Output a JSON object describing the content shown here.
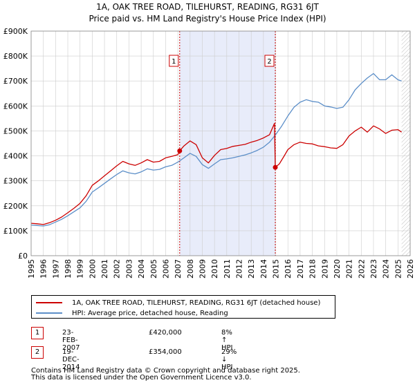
{
  "chart_data": {
    "type": "line",
    "title_line1": "1A, OAK TREE ROAD, TILEHURST, READING, RG31 6JT",
    "title_line2": "Price paid vs. HM Land Registry's House Price Index (HPI)",
    "xlabel": "",
    "ylabel": "",
    "xlim": [
      1995,
      2026
    ],
    "ylim": [
      0,
      900000
    ],
    "y_ticks": [
      0,
      100000,
      200000,
      300000,
      400000,
      500000,
      600000,
      700000,
      800000,
      900000
    ],
    "y_tick_labels": [
      "£0",
      "£100K",
      "£200K",
      "£300K",
      "£400K",
      "£500K",
      "£600K",
      "£700K",
      "£800K",
      "£900K"
    ],
    "x_ticks": [
      1995,
      1996,
      1997,
      1998,
      1999,
      2000,
      2001,
      2002,
      2003,
      2004,
      2005,
      2006,
      2007,
      2008,
      2009,
      2010,
      2011,
      2012,
      2013,
      2014,
      2015,
      2016,
      2017,
      2018,
      2019,
      2020,
      2021,
      2022,
      2023,
      2024,
      2025,
      2026
    ],
    "x_tick_labels": [
      "1995",
      "1996",
      "1997",
      "1998",
      "1999",
      "2000",
      "2001",
      "2002",
      "2003",
      "2004",
      "2005",
      "2006",
      "2007",
      "2008",
      "2009",
      "2010",
      "2011",
      "2012",
      "2013",
      "2014",
      "2015",
      "2016",
      "2017",
      "2018",
      "2019",
      "2020",
      "2021",
      "2022",
      "2023",
      "2024",
      "2025",
      "2026"
    ],
    "grid": true,
    "shaded_span": [
      2007.15,
      2014.97
    ],
    "hatched_from": 2025.3,
    "series": [
      {
        "name": "1A, OAK TREE ROAD, TILEHURST, READING, RG31 6JT (detached house)",
        "color": "#cc0000",
        "x": [
          1995.0,
          1995.5,
          1996.0,
          1996.5,
          1997.0,
          1997.5,
          1998.0,
          1998.5,
          1999.0,
          1999.5,
          2000.0,
          2000.5,
          2001.0,
          2001.5,
          2002.0,
          2002.5,
          2003.0,
          2003.5,
          2004.0,
          2004.5,
          2005.0,
          2005.5,
          2006.0,
          2006.5,
          2007.0,
          2007.15,
          2007.5,
          2008.0,
          2008.5,
          2009.0,
          2009.5,
          2010.0,
          2010.5,
          2011.0,
          2011.5,
          2012.0,
          2012.5,
          2013.0,
          2013.5,
          2014.0,
          2014.5,
          2014.9,
          2014.97,
          2015.3,
          2015.7,
          2016.0,
          2016.5,
          2017.0,
          2017.5,
          2018.0,
          2018.5,
          2019.0,
          2019.5,
          2020.0,
          2020.5,
          2021.0,
          2021.5,
          2022.0,
          2022.5,
          2023.0,
          2023.5,
          2024.0,
          2024.5,
          2025.0,
          2025.3
        ],
        "values": [
          130000,
          128000,
          125000,
          132000,
          142000,
          155000,
          172000,
          190000,
          210000,
          240000,
          282000,
          300000,
          320000,
          340000,
          360000,
          378000,
          368000,
          362000,
          372000,
          385000,
          375000,
          378000,
          392000,
          398000,
          405000,
          420000,
          440000,
          460000,
          445000,
          392000,
          372000,
          402000,
          425000,
          430000,
          438000,
          442000,
          446000,
          455000,
          462000,
          472000,
          485000,
          530000,
          354000,
          368000,
          400000,
          425000,
          445000,
          455000,
          450000,
          448000,
          440000,
          437000,
          432000,
          430000,
          445000,
          480000,
          500000,
          515000,
          495000,
          520000,
          508000,
          490000,
          503000,
          505000,
          495000
        ]
      },
      {
        "name": "HPI: Average price, detached house, Reading",
        "color": "#5b8ec8",
        "x": [
          1995.0,
          1995.5,
          1996.0,
          1996.5,
          1997.0,
          1997.5,
          1998.0,
          1998.5,
          1999.0,
          1999.5,
          2000.0,
          2000.5,
          2001.0,
          2001.5,
          2002.0,
          2002.5,
          2003.0,
          2003.5,
          2004.0,
          2004.5,
          2005.0,
          2005.5,
          2006.0,
          2006.5,
          2007.0,
          2007.5,
          2008.0,
          2008.5,
          2009.0,
          2009.5,
          2010.0,
          2010.5,
          2011.0,
          2011.5,
          2012.0,
          2012.5,
          2013.0,
          2013.5,
          2014.0,
          2014.5,
          2015.0,
          2015.5,
          2016.0,
          2016.5,
          2017.0,
          2017.5,
          2018.0,
          2018.5,
          2019.0,
          2019.5,
          2020.0,
          2020.5,
          2021.0,
          2021.5,
          2022.0,
          2022.5,
          2023.0,
          2023.5,
          2024.0,
          2024.5,
          2025.0,
          2025.3
        ],
        "values": [
          123000,
          121000,
          119000,
          124000,
          135000,
          146000,
          160000,
          176000,
          192000,
          218000,
          255000,
          272000,
          290000,
          308000,
          325000,
          340000,
          332000,
          328000,
          336000,
          348000,
          343000,
          346000,
          356000,
          362000,
          375000,
          392000,
          410000,
          398000,
          365000,
          350000,
          368000,
          385000,
          388000,
          392000,
          398000,
          404000,
          412000,
          422000,
          435000,
          455000,
          485000,
          520000,
          560000,
          595000,
          615000,
          625000,
          618000,
          615000,
          600000,
          596000,
          590000,
          595000,
          625000,
          665000,
          690000,
          712000,
          730000,
          705000,
          705000,
          725000,
          705000,
          700000
        ]
      }
    ],
    "annotations": [
      {
        "label": "1",
        "x": 2007.15,
        "value": 420000
      },
      {
        "label": "2",
        "x": 2014.97,
        "value": 354000
      }
    ]
  },
  "legend": {
    "sale_label": "1A, OAK TREE ROAD, TILEHURST, READING, RG31 6JT (detached house)",
    "hpi_label": "HPI: Average price, detached house, Reading"
  },
  "transactions": [
    {
      "num": "1",
      "date": "23-FEB-2007",
      "price": "£420,000",
      "hpi": "8% ↑ HPI"
    },
    {
      "num": "2",
      "date": "19-DEC-2014",
      "price": "£354,000",
      "hpi": "29% ↓ HPI"
    }
  ],
  "footer": {
    "line1": "Contains HM Land Registry data © Crown copyright and database right 2025.",
    "line2": "This data is licensed under the Open Government Licence v3.0."
  },
  "colors": {
    "sale": "#cc0000",
    "hpi": "#5b8ec8",
    "shade": "#e8ecfa",
    "grid": "#cccccc"
  }
}
